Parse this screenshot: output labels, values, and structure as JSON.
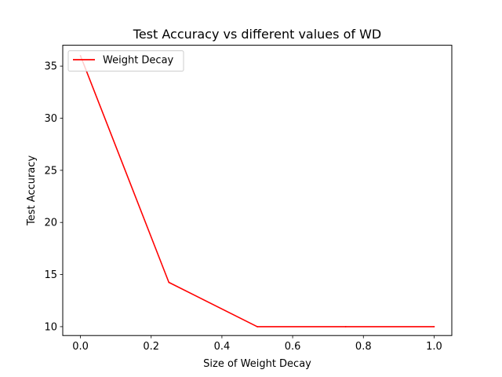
{
  "chart_data": {
    "type": "line",
    "title": "Test Accuracy vs different values of WD",
    "xlabel": "Size of Weight Decay",
    "ylabel": "Test Accuracy",
    "xlim": [
      -0.05,
      1.05
    ],
    "ylim": [
      9.15,
      37.0
    ],
    "xticks": [
      "0.0",
      "0.2",
      "0.4",
      "0.6",
      "0.8",
      "1.0"
    ],
    "yticks": [
      "10",
      "15",
      "20",
      "25",
      "30",
      "35"
    ],
    "legend_position": "top-left",
    "grid": false,
    "series": [
      {
        "name": "Weight Decay",
        "color": "#ff0000",
        "x": [
          0.0,
          0.25,
          0.5,
          0.75,
          1.0
        ],
        "y": [
          36.0,
          14.25,
          10.0,
          10.0,
          10.0
        ]
      }
    ]
  }
}
